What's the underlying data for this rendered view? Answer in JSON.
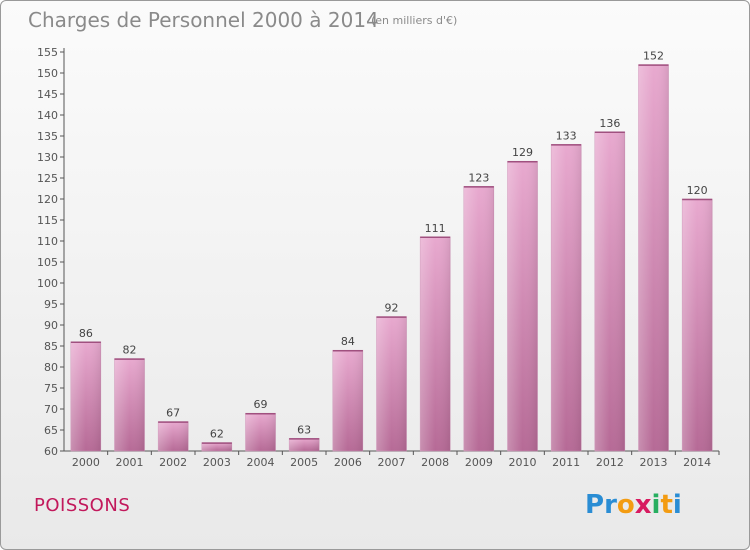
{
  "header": {
    "title": "Charges de Personnel 2000 à 2014",
    "unit": "(en milliers d'€)"
  },
  "footer": {
    "commune": "POISSONS",
    "logo_letters": [
      {
        "ch": "P",
        "color": "#2a8dd4"
      },
      {
        "ch": "r",
        "color": "#2a8dd4"
      },
      {
        "ch": "o",
        "color": "#f39c12"
      },
      {
        "ch": "x",
        "color": "#d81b60"
      },
      {
        "ch": "i",
        "color": "#27ae60"
      },
      {
        "ch": "t",
        "color": "#f39c12"
      },
      {
        "ch": "i",
        "color": "#2a8dd4"
      }
    ]
  },
  "colors": {
    "bar_light": "#e8a9cf",
    "bar_dark": "#b66a96",
    "text": "#8a8a8a",
    "commune": "#c2185b"
  },
  "chart_data": {
    "type": "bar",
    "title": "Charges de Personnel 2000 à 2014",
    "subtitle": "(en milliers d'€)",
    "categories": [
      "2000",
      "2001",
      "2002",
      "2003",
      "2004",
      "2005",
      "2006",
      "2007",
      "2008",
      "2009",
      "2010",
      "2011",
      "2012",
      "2013",
      "2014"
    ],
    "values": [
      86,
      82,
      67,
      62,
      69,
      63,
      84,
      92,
      111,
      123,
      129,
      133,
      136,
      152,
      120
    ],
    "ylim": [
      60,
      155
    ],
    "yticks": [
      60,
      65,
      70,
      75,
      80,
      85,
      90,
      95,
      100,
      105,
      110,
      115,
      120,
      125,
      130,
      135,
      140,
      145,
      150,
      155
    ],
    "grid": false,
    "data_labels": true
  }
}
